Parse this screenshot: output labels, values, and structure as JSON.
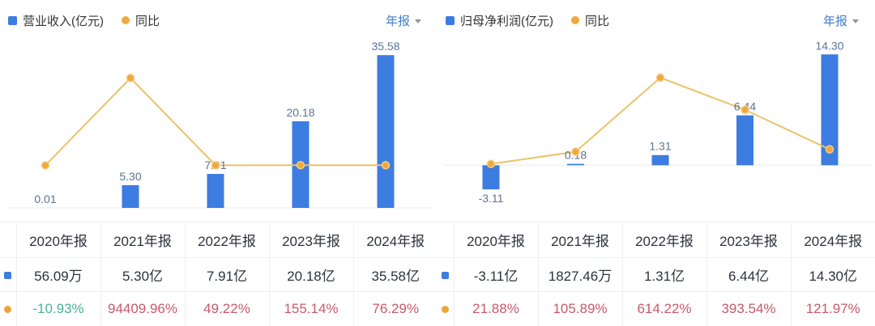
{
  "colors": {
    "bar_blue": "#3d7ce0",
    "line_yellow": "#e7c468",
    "dot_orange": "#f0a83c",
    "dot_stroke": "#f5cc83",
    "table_dot_orange": "#eba43c",
    "chart_label_bluegray": "#5d7492",
    "legend_text": "#333333",
    "table_text": "#2e323a",
    "rise_red": "#c9596a",
    "fall_green": "#49b29b",
    "selector_blue": "#3f7ec5",
    "grid_border": "#edeff2",
    "axis_baseline": "#ececec"
  },
  "panels": [
    {
      "header": {
        "legend": [
          {
            "label": "营业收入(亿元)",
            "marker": "square"
          },
          {
            "label": "同比",
            "marker": "dot"
          }
        ],
        "period_selector": "年报"
      },
      "chart_data": {
        "type": "bar+line",
        "title": "营业收入(亿元) 与 同比",
        "categories": [
          "2020年报",
          "2021年报",
          "2022年报",
          "2023年报",
          "2024年报"
        ],
        "grid": false,
        "legend_position": "top-left",
        "series": [
          {
            "name": "营业收入(亿元)",
            "type": "bar",
            "unit": "亿元",
            "values": [
              0.01,
              5.3,
              7.91,
              20.18,
              35.58
            ],
            "point_labels": [
              "0.01",
              "5.30",
              "7.91",
              "20.18",
              "35.58"
            ],
            "ylim": [
              0,
              39
            ]
          },
          {
            "name": "同比",
            "type": "line",
            "unit": "%",
            "values": [
              -10.93,
              94409.96,
              49.22,
              155.14,
              76.29
            ],
            "ylim": [
              -46000,
              135000
            ]
          }
        ]
      },
      "table": {
        "columns": [
          "2020年报",
          "2021年报",
          "2022年报",
          "2023年报",
          "2024年报"
        ],
        "rows": [
          {
            "marker": "square",
            "series_name": "营业收入",
            "values": [
              "56.09万",
              "5.30亿",
              "7.91亿",
              "20.18亿",
              "35.58亿"
            ],
            "tones": [
              "default",
              "default",
              "default",
              "default",
              "default"
            ]
          },
          {
            "marker": "dot",
            "series_name": "同比",
            "values": [
              "-10.93%",
              "94409.96%",
              "49.22%",
              "155.14%",
              "76.29%"
            ],
            "tones": [
              "fall",
              "rise",
              "rise",
              "rise",
              "rise"
            ]
          }
        ]
      }
    },
    {
      "header": {
        "legend": [
          {
            "label": "归母净利润(亿元)",
            "marker": "square"
          },
          {
            "label": "同比",
            "marker": "dot"
          }
        ],
        "period_selector": "年报"
      },
      "chart_data": {
        "type": "bar+line",
        "title": "归母净利润(亿元) 与 同比",
        "categories": [
          "2020年报",
          "2021年报",
          "2022年报",
          "2023年报",
          "2024年报"
        ],
        "grid": false,
        "legend_position": "top-left",
        "series": [
          {
            "name": "归母净利润(亿元)",
            "type": "bar",
            "unit": "亿元",
            "values": [
              -3.11,
              0.18,
              1.31,
              6.44,
              14.3
            ],
            "point_labels": [
              "-3.11",
              "0.18",
              "1.31",
              "6.44",
              "14.30"
            ],
            "ylim": [
              -5.5,
              16.1
            ]
          },
          {
            "name": "同比",
            "type": "line",
            "unit": "%",
            "values": [
              21.88,
              105.89,
              614.22,
              393.54,
              121.97
            ],
            "ylim": [
              -280,
              870
            ]
          }
        ]
      },
      "table": {
        "columns": [
          "2020年报",
          "2021年报",
          "2022年报",
          "2023年报",
          "2024年报"
        ],
        "rows": [
          {
            "marker": "square",
            "series_name": "归母净利润",
            "values": [
              "-3.11亿",
              "1827.46万",
              "1.31亿",
              "6.44亿",
              "14.30亿"
            ],
            "tones": [
              "default",
              "default",
              "default",
              "default",
              "default"
            ]
          },
          {
            "marker": "dot",
            "series_name": "同比",
            "values": [
              "21.88%",
              "105.89%",
              "614.22%",
              "393.54%",
              "121.97%"
            ],
            "tones": [
              "rise",
              "rise",
              "rise",
              "rise",
              "rise"
            ]
          }
        ]
      }
    }
  ]
}
